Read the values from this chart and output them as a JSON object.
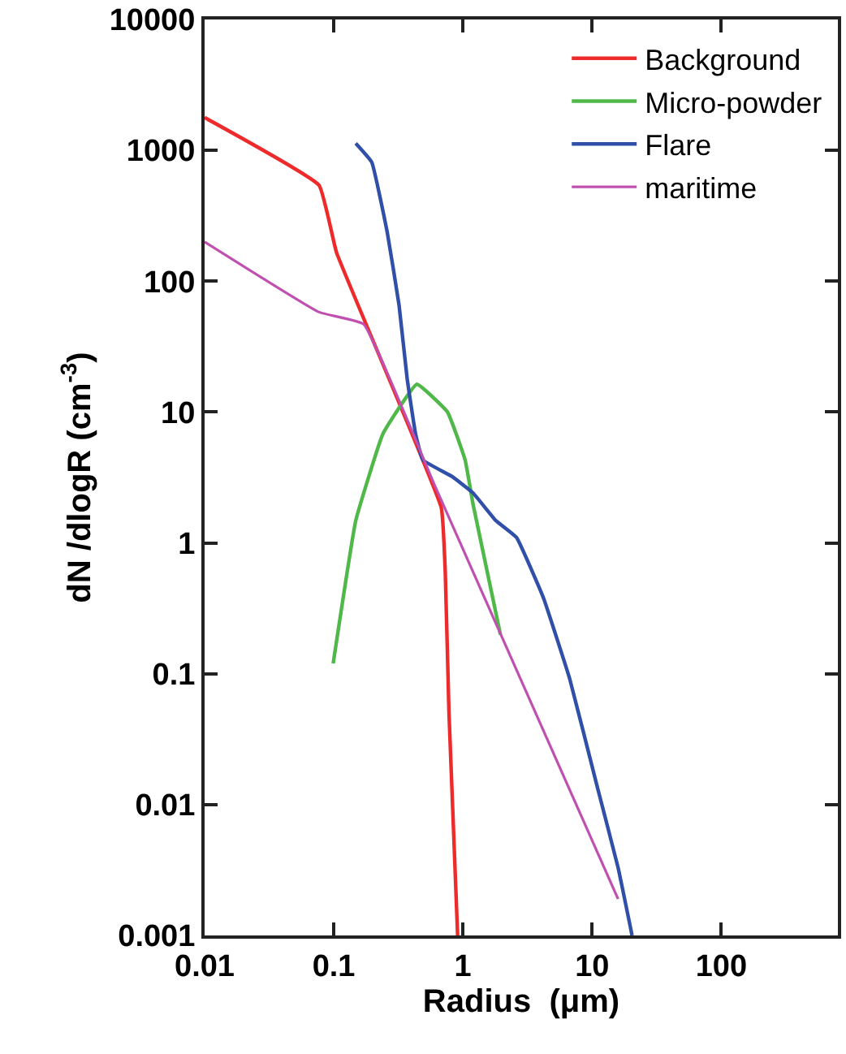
{
  "chart_data": {
    "type": "line",
    "xlabel": "Radius  (μm)",
    "ylabel": "dN /dlogR (cm$^{-3}$)",
    "log": "xy",
    "legend": "top right",
    "marker": "none",
    "line_style": "solid",
    "xlim": [
      0.01,
      800
    ],
    "xticks": [
      0.01,
      0.1,
      1,
      10,
      100
    ],
    "ylim": [
      0.001,
      10000
    ],
    "yticks": [
      0.001,
      0.01,
      0.1,
      1,
      10,
      100,
      1000,
      10000
    ],
    "series": [
      {
        "name": "Background",
        "color": "#ee2a2a",
        "x": [
          0.01,
          0.077,
          0.105,
          0.68,
          0.73,
          0.78,
          0.91
        ],
        "values": [
          1780,
          540,
          166,
          1.86,
          0.6,
          0.05,
          0.001
        ]
      },
      {
        "name": "Micro-powder",
        "color": "#4fb848",
        "x": [
          0.099,
          0.148,
          0.24,
          0.44,
          0.76,
          1.04,
          1.2,
          1.95
        ],
        "values": [
          0.12,
          1.48,
          6.8,
          16.3,
          10,
          4.3,
          1.96,
          0.2
        ]
      },
      {
        "name": "Flare",
        "color": "#2f4fa8",
        "x": [
          0.148,
          0.197,
          0.26,
          0.32,
          0.37,
          0.43,
          0.49,
          0.83,
          1.2,
          1.8,
          2.6,
          4.2,
          6.7,
          10.9,
          15.9,
          20.4
        ],
        "values": [
          1130,
          810,
          234,
          66,
          18,
          6.8,
          4.3,
          3.2,
          2.4,
          1.48,
          1.1,
          0.38,
          0.092,
          0.014,
          0.0033,
          0.001
        ]
      },
      {
        "name": "maritime",
        "color": "#c050b0",
        "x": [
          0.01,
          0.077,
          0.17,
          0.62,
          15.9
        ],
        "values": [
          200,
          58,
          47,
          2.6,
          0.0019
        ]
      }
    ]
  }
}
